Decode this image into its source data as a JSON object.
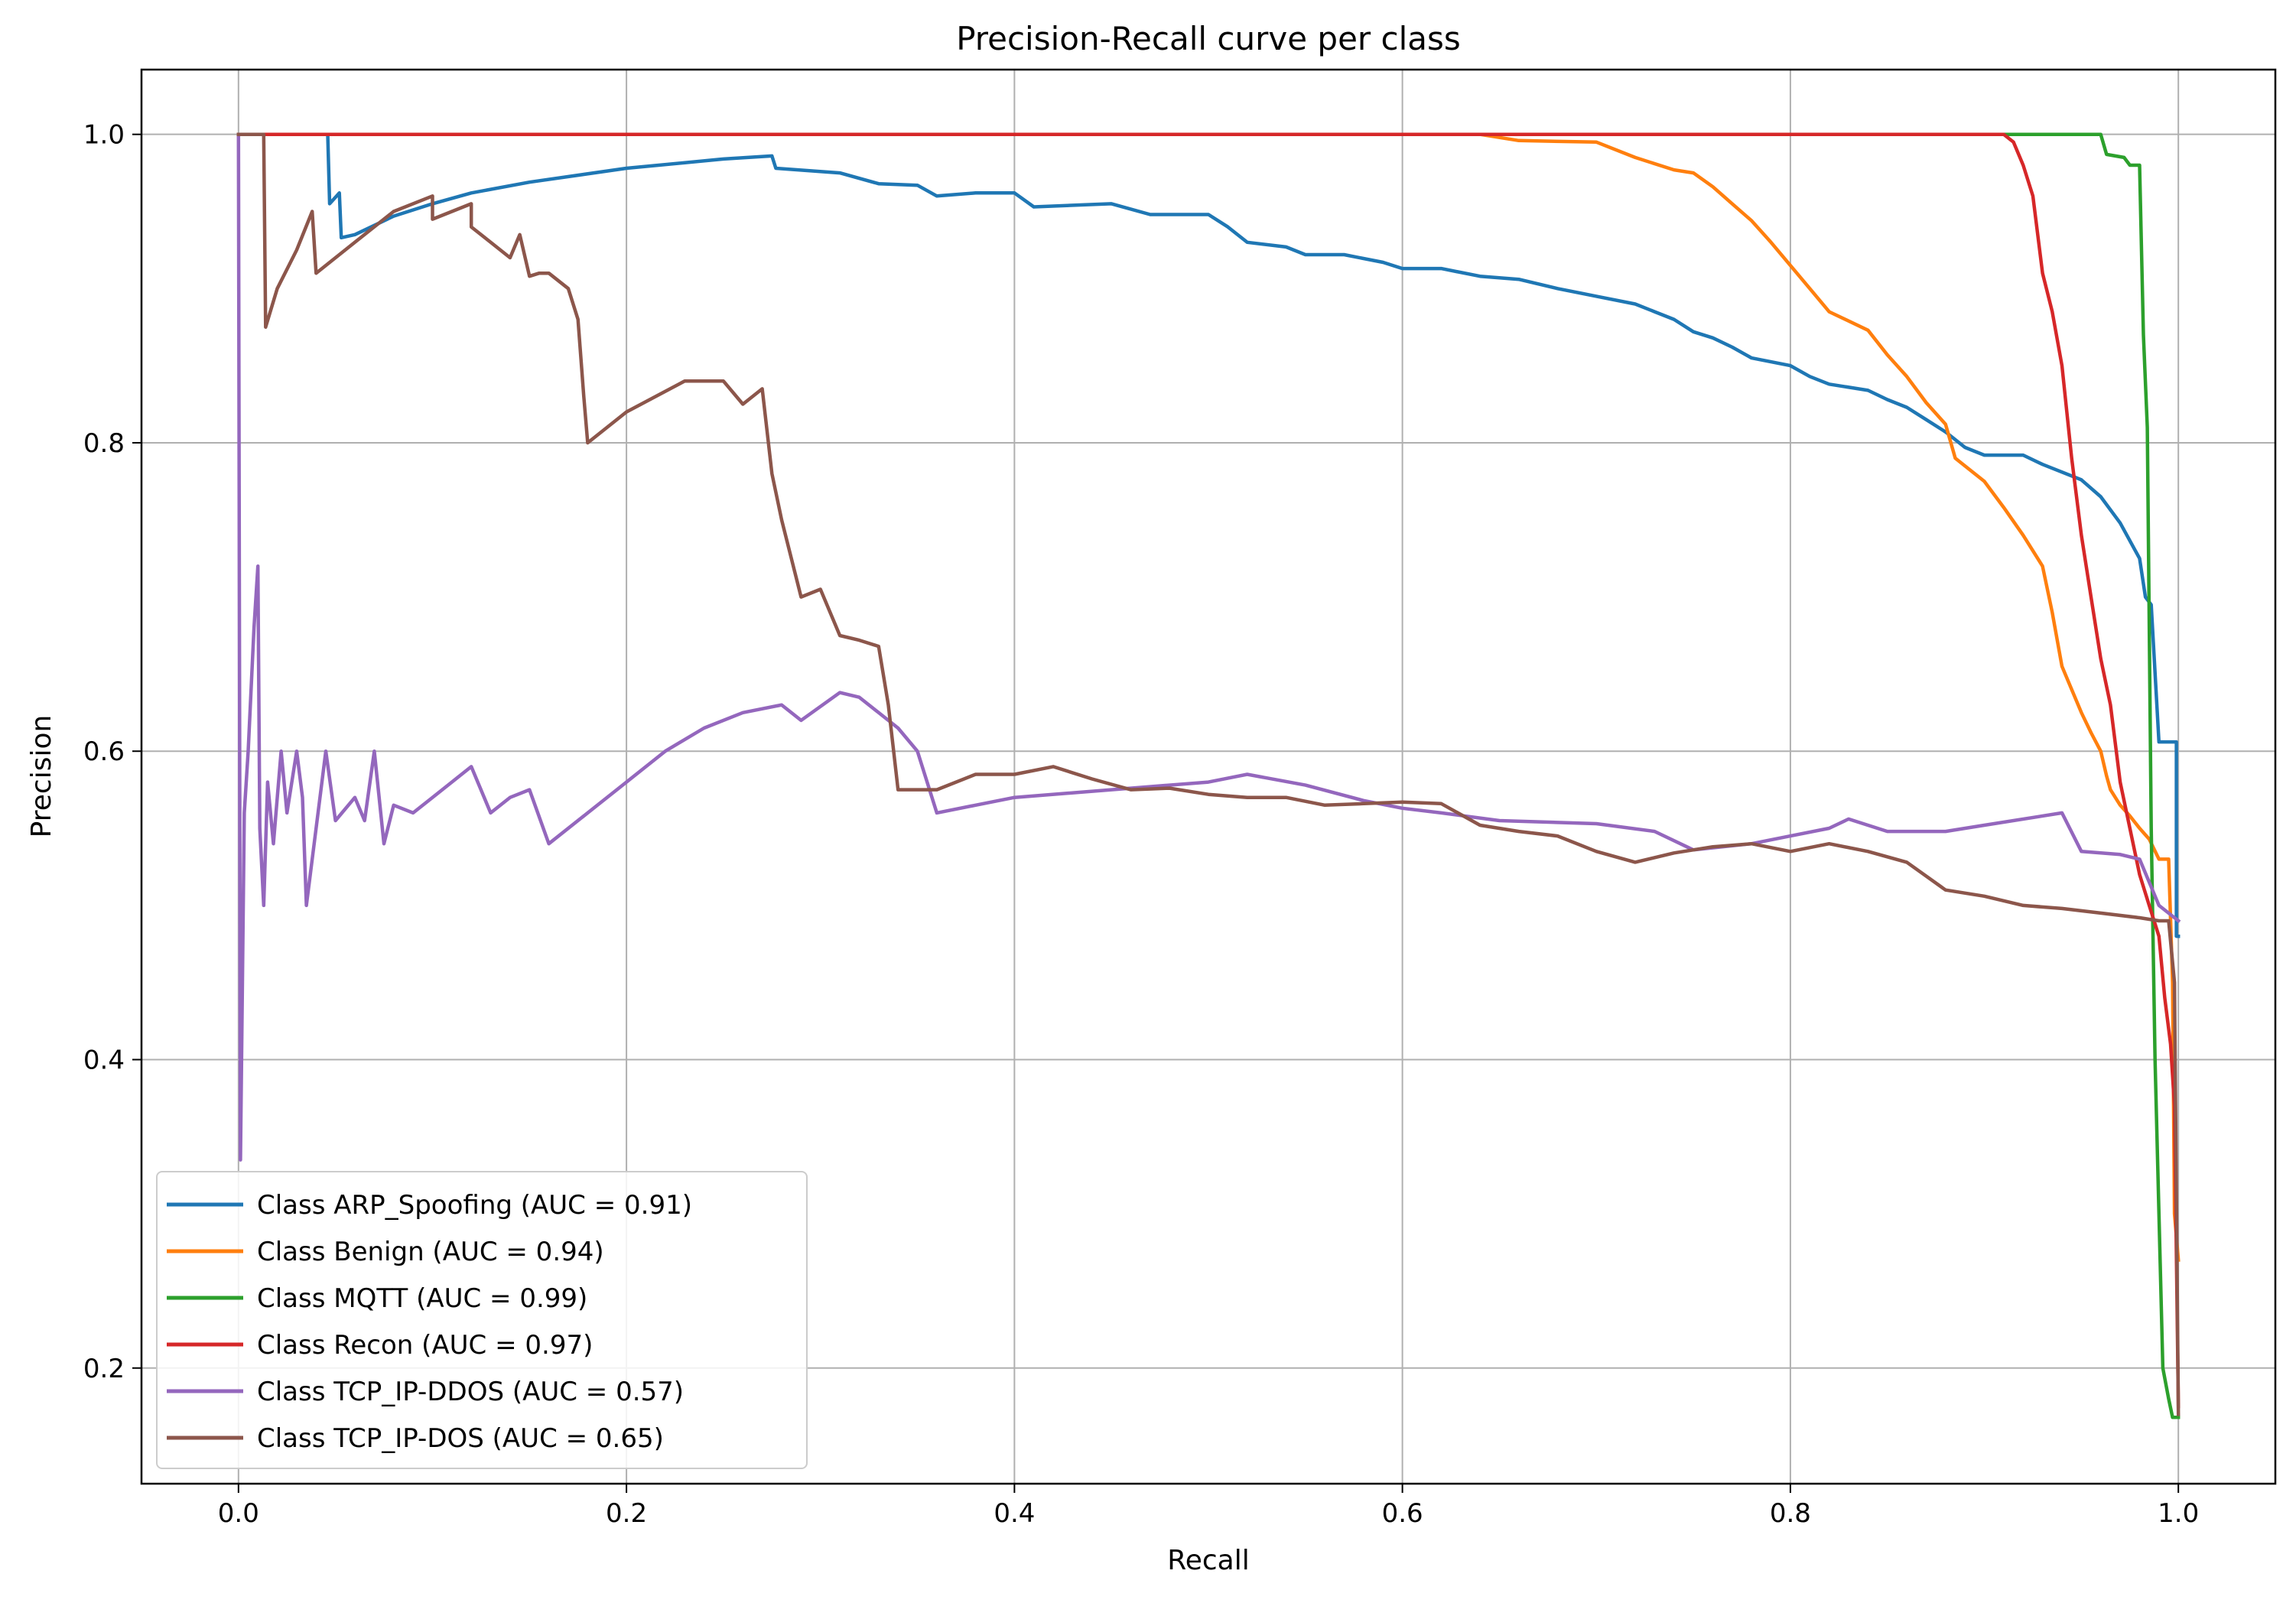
{
  "chart_data": {
    "type": "line",
    "title": "Precision-Recall curve per class",
    "xlabel": "Recall",
    "ylabel": "Precision",
    "xlim": [
      -0.05,
      1.05
    ],
    "ylim": [
      0.125,
      1.042
    ],
    "xticks": [
      0.0,
      0.2,
      0.4,
      0.6,
      0.8,
      1.0
    ],
    "xtick_labels": [
      "0.0",
      "0.2",
      "0.4",
      "0.6",
      "0.8",
      "1.0"
    ],
    "yticks": [
      0.2,
      0.4,
      0.6,
      0.8,
      1.0
    ],
    "ytick_labels": [
      "0.2",
      "0.4",
      "0.6",
      "0.8",
      "1.0"
    ],
    "grid": true,
    "legend_position": "lower-left",
    "series": [
      {
        "name": "Class ARP_Spoofing (AUC = 0.91)",
        "color": "#1f77b4",
        "points": [
          [
            0.0,
            1.0
          ],
          [
            0.046,
            1.0
          ],
          [
            0.047,
            0.955
          ],
          [
            0.052,
            0.962
          ],
          [
            0.053,
            0.933
          ],
          [
            0.06,
            0.935
          ],
          [
            0.08,
            0.947
          ],
          [
            0.1,
            0.955
          ],
          [
            0.12,
            0.962
          ],
          [
            0.15,
            0.969
          ],
          [
            0.2,
            0.978
          ],
          [
            0.25,
            0.984
          ],
          [
            0.275,
            0.986
          ],
          [
            0.277,
            0.978
          ],
          [
            0.31,
            0.975
          ],
          [
            0.33,
            0.968
          ],
          [
            0.35,
            0.967
          ],
          [
            0.36,
            0.96
          ],
          [
            0.38,
            0.962
          ],
          [
            0.4,
            0.962
          ],
          [
            0.41,
            0.953
          ],
          [
            0.45,
            0.955
          ],
          [
            0.47,
            0.948
          ],
          [
            0.5,
            0.948
          ],
          [
            0.51,
            0.94
          ],
          [
            0.52,
            0.93
          ],
          [
            0.54,
            0.927
          ],
          [
            0.55,
            0.922
          ],
          [
            0.57,
            0.922
          ],
          [
            0.59,
            0.917
          ],
          [
            0.6,
            0.913
          ],
          [
            0.62,
            0.913
          ],
          [
            0.64,
            0.908
          ],
          [
            0.66,
            0.906
          ],
          [
            0.68,
            0.9
          ],
          [
            0.7,
            0.895
          ],
          [
            0.72,
            0.89
          ],
          [
            0.73,
            0.885
          ],
          [
            0.74,
            0.88
          ],
          [
            0.75,
            0.872
          ],
          [
            0.76,
            0.868
          ],
          [
            0.77,
            0.862
          ],
          [
            0.78,
            0.855
          ],
          [
            0.8,
            0.85
          ],
          [
            0.81,
            0.843
          ],
          [
            0.82,
            0.838
          ],
          [
            0.84,
            0.834
          ],
          [
            0.85,
            0.828
          ],
          [
            0.86,
            0.823
          ],
          [
            0.87,
            0.815
          ],
          [
            0.88,
            0.807
          ],
          [
            0.89,
            0.797
          ],
          [
            0.9,
            0.792
          ],
          [
            0.92,
            0.792
          ],
          [
            0.93,
            0.786
          ],
          [
            0.95,
            0.776
          ],
          [
            0.96,
            0.765
          ],
          [
            0.97,
            0.748
          ],
          [
            0.98,
            0.725
          ],
          [
            0.983,
            0.7
          ],
          [
            0.986,
            0.695
          ],
          [
            0.99,
            0.606
          ],
          [
            0.999,
            0.606
          ],
          [
            0.999,
            0.48
          ],
          [
            1.0,
            0.48
          ]
        ]
      },
      {
        "name": "Class Benign (AUC = 0.94)",
        "color": "#ff7f0e",
        "points": [
          [
            0.0,
            1.0
          ],
          [
            0.64,
            1.0
          ],
          [
            0.66,
            0.996
          ],
          [
            0.7,
            0.995
          ],
          [
            0.72,
            0.985
          ],
          [
            0.74,
            0.977
          ],
          [
            0.75,
            0.975
          ],
          [
            0.76,
            0.966
          ],
          [
            0.77,
            0.955
          ],
          [
            0.78,
            0.944
          ],
          [
            0.79,
            0.93
          ],
          [
            0.8,
            0.915
          ],
          [
            0.81,
            0.9
          ],
          [
            0.82,
            0.885
          ],
          [
            0.84,
            0.873
          ],
          [
            0.85,
            0.857
          ],
          [
            0.86,
            0.843
          ],
          [
            0.87,
            0.826
          ],
          [
            0.88,
            0.812
          ],
          [
            0.885,
            0.79
          ],
          [
            0.89,
            0.785
          ],
          [
            0.9,
            0.775
          ],
          [
            0.91,
            0.758
          ],
          [
            0.92,
            0.74
          ],
          [
            0.93,
            0.72
          ],
          [
            0.935,
            0.69
          ],
          [
            0.94,
            0.655
          ],
          [
            0.95,
            0.625
          ],
          [
            0.955,
            0.612
          ],
          [
            0.96,
            0.6
          ],
          [
            0.963,
            0.584
          ],
          [
            0.965,
            0.575
          ],
          [
            0.97,
            0.565
          ],
          [
            0.975,
            0.558
          ],
          [
            0.98,
            0.55
          ],
          [
            0.985,
            0.543
          ],
          [
            0.99,
            0.53
          ],
          [
            0.995,
            0.53
          ],
          [
            0.997,
            0.45
          ],
          [
            0.998,
            0.3
          ],
          [
            1.0,
            0.27
          ]
        ]
      },
      {
        "name": "Class MQTT (AUC = 0.99)",
        "color": "#2ca02c",
        "points": [
          [
            0.0,
            1.0
          ],
          [
            0.96,
            1.0
          ],
          [
            0.963,
            0.987
          ],
          [
            0.972,
            0.985
          ],
          [
            0.975,
            0.98
          ],
          [
            0.98,
            0.98
          ],
          [
            0.982,
            0.87
          ],
          [
            0.984,
            0.81
          ],
          [
            0.986,
            0.55
          ],
          [
            0.988,
            0.4
          ],
          [
            0.99,
            0.3
          ],
          [
            0.992,
            0.2
          ],
          [
            0.995,
            0.18
          ],
          [
            0.997,
            0.168
          ],
          [
            1.0,
            0.168
          ]
        ]
      },
      {
        "name": "Class Recon (AUC = 0.97)",
        "color": "#d62728",
        "points": [
          [
            0.0,
            1.0
          ],
          [
            0.91,
            1.0
          ],
          [
            0.915,
            0.995
          ],
          [
            0.92,
            0.98
          ],
          [
            0.925,
            0.96
          ],
          [
            0.93,
            0.91
          ],
          [
            0.935,
            0.885
          ],
          [
            0.94,
            0.85
          ],
          [
            0.945,
            0.79
          ],
          [
            0.95,
            0.74
          ],
          [
            0.955,
            0.7
          ],
          [
            0.96,
            0.66
          ],
          [
            0.965,
            0.63
          ],
          [
            0.97,
            0.58
          ],
          [
            0.975,
            0.55
          ],
          [
            0.98,
            0.52
          ],
          [
            0.985,
            0.5
          ],
          [
            0.99,
            0.48
          ],
          [
            0.993,
            0.44
          ],
          [
            0.996,
            0.41
          ],
          [
            0.998,
            0.37
          ],
          [
            1.0,
            0.175
          ]
        ]
      },
      {
        "name": "Class TCP_IP-DDOS (AUC = 0.57)",
        "color": "#9467bd",
        "points": [
          [
            0.0,
            1.0
          ],
          [
            0.001,
            0.335
          ],
          [
            0.003,
            0.56
          ],
          [
            0.005,
            0.6
          ],
          [
            0.008,
            0.68
          ],
          [
            0.01,
            0.72
          ],
          [
            0.011,
            0.55
          ],
          [
            0.013,
            0.5
          ],
          [
            0.015,
            0.58
          ],
          [
            0.018,
            0.54
          ],
          [
            0.022,
            0.6
          ],
          [
            0.025,
            0.56
          ],
          [
            0.03,
            0.6
          ],
          [
            0.033,
            0.57
          ],
          [
            0.035,
            0.5
          ],
          [
            0.04,
            0.55
          ],
          [
            0.045,
            0.6
          ],
          [
            0.05,
            0.555
          ],
          [
            0.06,
            0.57
          ],
          [
            0.065,
            0.555
          ],
          [
            0.07,
            0.6
          ],
          [
            0.075,
            0.54
          ],
          [
            0.08,
            0.565
          ],
          [
            0.09,
            0.56
          ],
          [
            0.1,
            0.57
          ],
          [
            0.11,
            0.58
          ],
          [
            0.12,
            0.59
          ],
          [
            0.13,
            0.56
          ],
          [
            0.14,
            0.57
          ],
          [
            0.15,
            0.575
          ],
          [
            0.16,
            0.54
          ],
          [
            0.18,
            0.56
          ],
          [
            0.2,
            0.58
          ],
          [
            0.22,
            0.6
          ],
          [
            0.24,
            0.615
          ],
          [
            0.26,
            0.625
          ],
          [
            0.28,
            0.63
          ],
          [
            0.29,
            0.62
          ],
          [
            0.31,
            0.638
          ],
          [
            0.32,
            0.635
          ],
          [
            0.33,
            0.625
          ],
          [
            0.34,
            0.615
          ],
          [
            0.35,
            0.6
          ],
          [
            0.36,
            0.56
          ],
          [
            0.38,
            0.565
          ],
          [
            0.4,
            0.57
          ],
          [
            0.45,
            0.575
          ],
          [
            0.5,
            0.58
          ],
          [
            0.52,
            0.585
          ],
          [
            0.55,
            0.578
          ],
          [
            0.58,
            0.568
          ],
          [
            0.6,
            0.563
          ],
          [
            0.62,
            0.56
          ],
          [
            0.65,
            0.555
          ],
          [
            0.7,
            0.553
          ],
          [
            0.73,
            0.548
          ],
          [
            0.75,
            0.536
          ],
          [
            0.78,
            0.54
          ],
          [
            0.8,
            0.545
          ],
          [
            0.82,
            0.55
          ],
          [
            0.83,
            0.556
          ],
          [
            0.85,
            0.548
          ],
          [
            0.88,
            0.548
          ],
          [
            0.9,
            0.552
          ],
          [
            0.94,
            0.56
          ],
          [
            0.95,
            0.535
          ],
          [
            0.97,
            0.533
          ],
          [
            0.98,
            0.53
          ],
          [
            0.99,
            0.5
          ],
          [
            1.0,
            0.49
          ]
        ]
      },
      {
        "name": "Class TCP_IP-DOS (AUC = 0.65)",
        "color": "#8c564b",
        "points": [
          [
            0.0,
            1.0
          ],
          [
            0.013,
            1.0
          ],
          [
            0.014,
            0.875
          ],
          [
            0.02,
            0.9
          ],
          [
            0.03,
            0.925
          ],
          [
            0.038,
            0.95
          ],
          [
            0.04,
            0.91
          ],
          [
            0.06,
            0.93
          ],
          [
            0.08,
            0.95
          ],
          [
            0.1,
            0.96
          ],
          [
            0.1,
            0.945
          ],
          [
            0.12,
            0.955
          ],
          [
            0.12,
            0.94
          ],
          [
            0.13,
            0.93
          ],
          [
            0.14,
            0.92
          ],
          [
            0.145,
            0.935
          ],
          [
            0.15,
            0.908
          ],
          [
            0.155,
            0.91
          ],
          [
            0.16,
            0.91
          ],
          [
            0.17,
            0.9
          ],
          [
            0.175,
            0.88
          ],
          [
            0.178,
            0.83
          ],
          [
            0.18,
            0.8
          ],
          [
            0.2,
            0.82
          ],
          [
            0.23,
            0.84
          ],
          [
            0.25,
            0.84
          ],
          [
            0.26,
            0.825
          ],
          [
            0.27,
            0.835
          ],
          [
            0.275,
            0.78
          ],
          [
            0.28,
            0.75
          ],
          [
            0.29,
            0.7
          ],
          [
            0.3,
            0.705
          ],
          [
            0.31,
            0.675
          ],
          [
            0.32,
            0.672
          ],
          [
            0.33,
            0.668
          ],
          [
            0.335,
            0.63
          ],
          [
            0.34,
            0.575
          ],
          [
            0.36,
            0.575
          ],
          [
            0.38,
            0.585
          ],
          [
            0.4,
            0.585
          ],
          [
            0.42,
            0.59
          ],
          [
            0.44,
            0.582
          ],
          [
            0.46,
            0.575
          ],
          [
            0.48,
            0.576
          ],
          [
            0.5,
            0.572
          ],
          [
            0.52,
            0.57
          ],
          [
            0.54,
            0.57
          ],
          [
            0.56,
            0.565
          ],
          [
            0.58,
            0.566
          ],
          [
            0.6,
            0.567
          ],
          [
            0.62,
            0.566
          ],
          [
            0.64,
            0.552
          ],
          [
            0.66,
            0.548
          ],
          [
            0.68,
            0.545
          ],
          [
            0.7,
            0.535
          ],
          [
            0.72,
            0.528
          ],
          [
            0.74,
            0.534
          ],
          [
            0.76,
            0.538
          ],
          [
            0.78,
            0.54
          ],
          [
            0.8,
            0.535
          ],
          [
            0.82,
            0.54
          ],
          [
            0.84,
            0.535
          ],
          [
            0.86,
            0.528
          ],
          [
            0.88,
            0.51
          ],
          [
            0.9,
            0.506
          ],
          [
            0.92,
            0.5
          ],
          [
            0.94,
            0.498
          ],
          [
            0.96,
            0.495
          ],
          [
            0.98,
            0.492
          ],
          [
            0.99,
            0.49
          ],
          [
            0.995,
            0.49
          ],
          [
            0.998,
            0.45
          ],
          [
            1.0,
            0.17
          ]
        ]
      }
    ]
  }
}
